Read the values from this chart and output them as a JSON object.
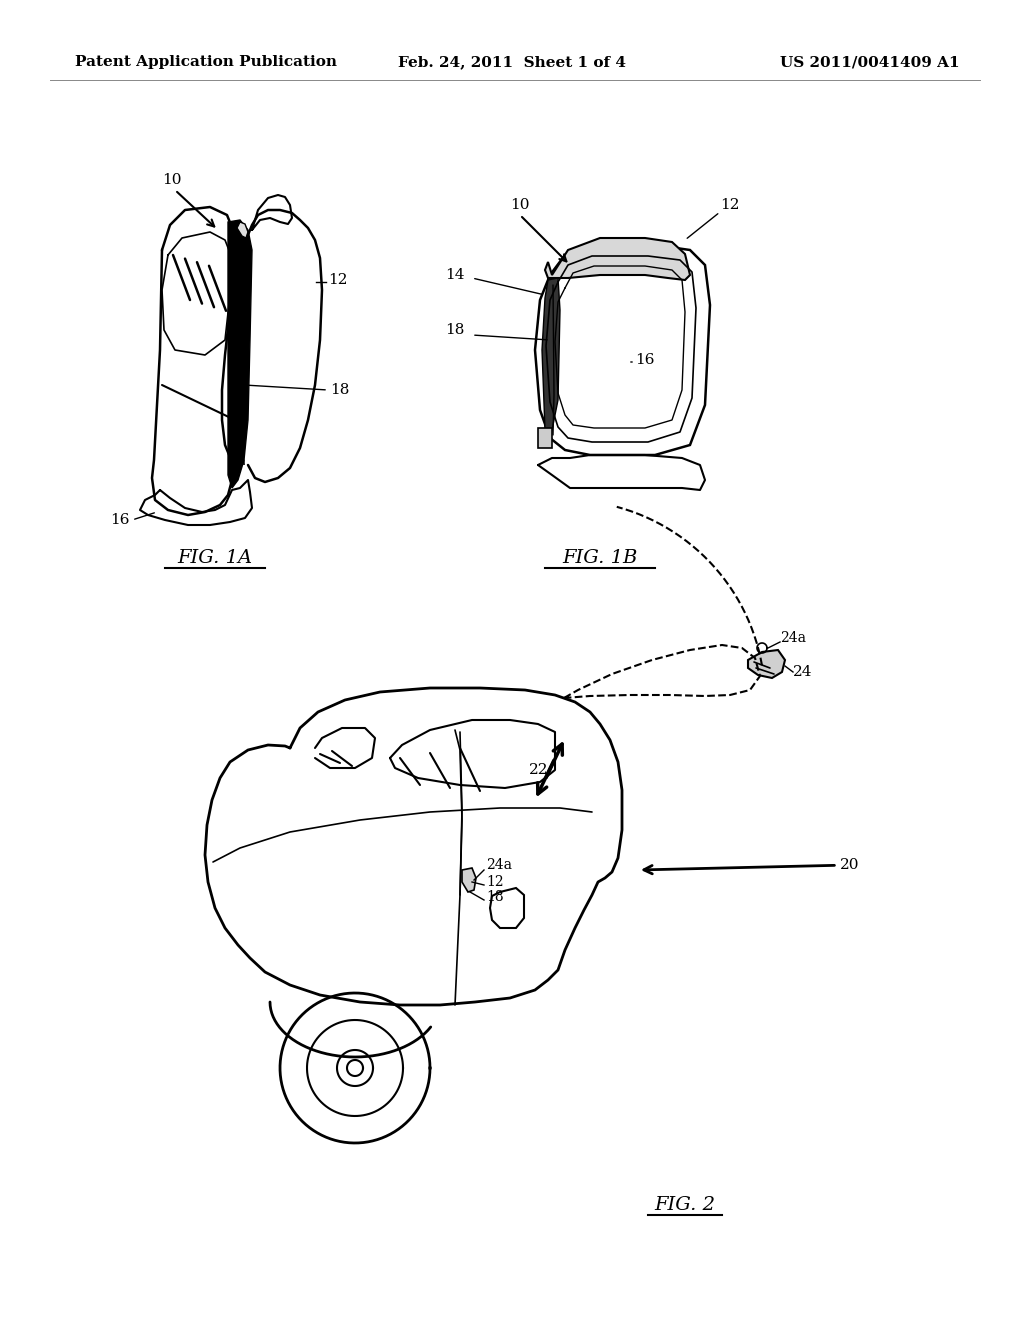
{
  "background_color": "#ffffff",
  "header": {
    "left_text": "Patent Application Publication",
    "center_text": "Feb. 24, 2011  Sheet 1 of 4",
    "right_text": "US 2011/0041409 A1",
    "font_size": 11
  },
  "line_color": "#000000",
  "text_color": "#000000",
  "fig1a_label": "FIG. 1A",
  "fig1b_label": "FIG. 1B",
  "fig2_label": "FIG. 2"
}
